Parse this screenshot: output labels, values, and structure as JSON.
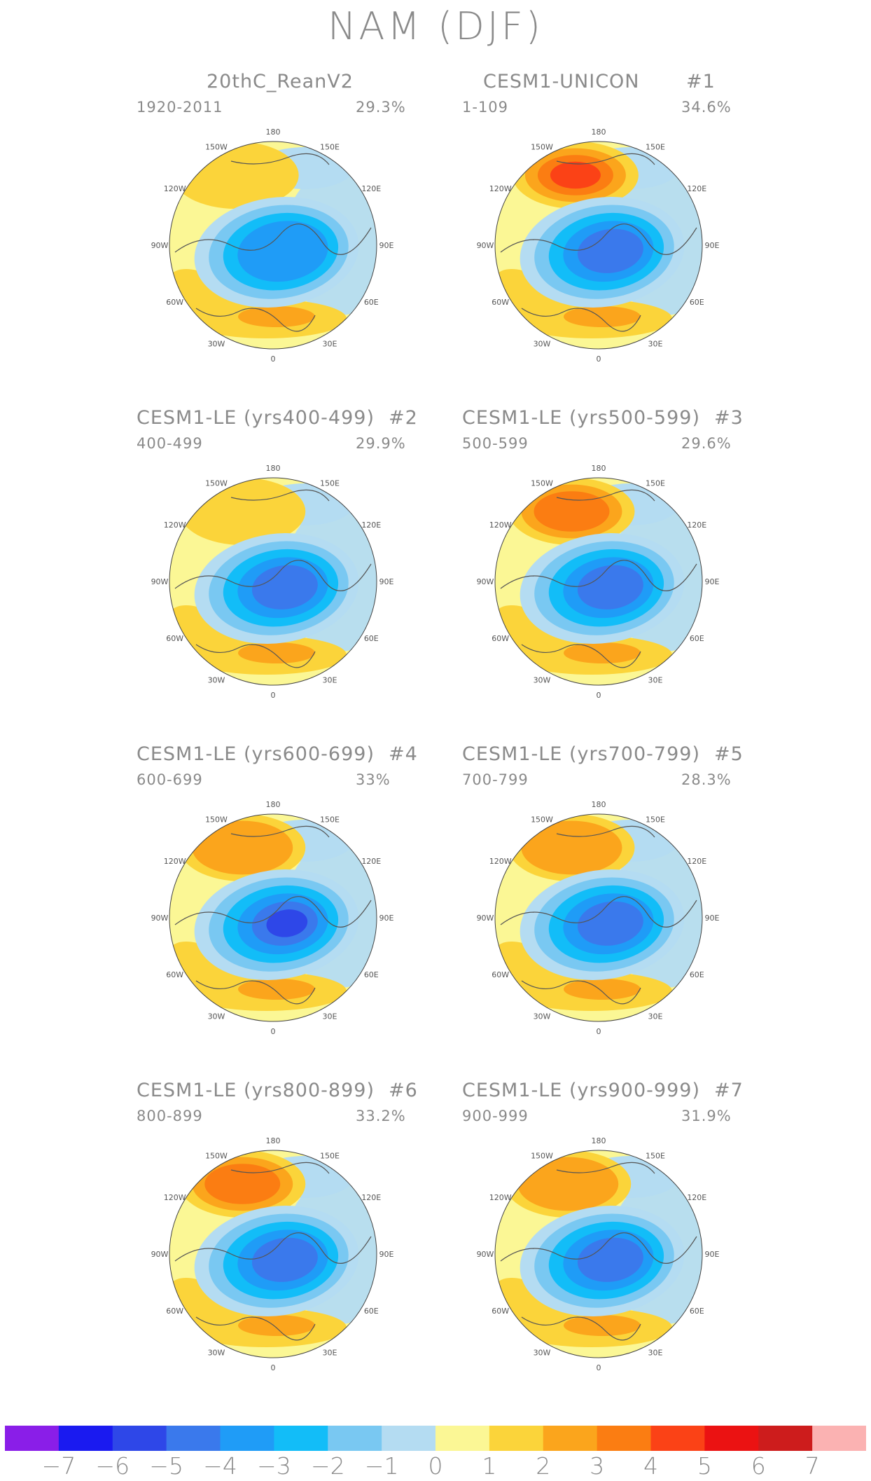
{
  "title": "NAM (DJF)",
  "panels": [
    {
      "title": "20thC_ReanV2",
      "number": "",
      "years": "1920-2011",
      "percent": "29.3%",
      "low_level": -4,
      "high_level": 2,
      "high_lon": -140
    },
    {
      "title": "CESM1-UNICON",
      "number": "#1",
      "years": "1-109",
      "percent": "34.6%",
      "low_level": -5,
      "high_level": 5,
      "high_lon": -160
    },
    {
      "title": "CESM1-LE (yrs400-499)",
      "number": "#2",
      "years": "400-499",
      "percent": "29.9%",
      "low_level": -5,
      "high_level": 2,
      "high_lon": -150
    },
    {
      "title": "CESM1-LE (yrs500-599)",
      "number": "#3",
      "years": "500-599",
      "percent": "29.6%",
      "low_level": -5,
      "high_level": 4,
      "high_lon": -155
    },
    {
      "title": "CESM1-LE (yrs600-699)",
      "number": "#4",
      "years": "600-699",
      "percent": "33%",
      "low_level": -6,
      "high_level": 3,
      "high_lon": -150
    },
    {
      "title": "CESM1-LE (yrs700-799)",
      "number": "#5",
      "years": "700-799",
      "percent": "28.3%",
      "low_level": -5,
      "high_level": 3,
      "high_lon": -155
    },
    {
      "title": "CESM1-LE (yrs800-899)",
      "number": "#6",
      "years": "800-899",
      "percent": "33.2%",
      "low_level": -5,
      "high_level": 4,
      "high_lon": -150
    },
    {
      "title": "CESM1-LE (yrs900-999)",
      "number": "#7",
      "years": "900-999",
      "percent": "31.9%",
      "low_level": -5,
      "high_level": 3,
      "high_lon": -150
    }
  ],
  "lon_labels": [
    "180",
    "150E",
    "120E",
    "90E",
    "60E",
    "30E",
    "0",
    "30W",
    "60W",
    "90W",
    "120W",
    "150W"
  ],
  "colorbar": {
    "colors": [
      "#8a1ee8",
      "#1a1af0",
      "#2e47e8",
      "#3a79ec",
      "#1f9cf7",
      "#12bdf8",
      "#79c8f2",
      "#b4dcf2",
      "#fbf795",
      "#fbd43a",
      "#fba51c",
      "#fb7d12",
      "#fb4216",
      "#eb1212",
      "#cd1c1c",
      "#fbb2b2"
    ],
    "ticks": [
      "−7",
      "−6",
      "−5",
      "−4",
      "−3",
      "−2",
      "−1",
      "0",
      "1",
      "2",
      "3",
      "4",
      "5",
      "6",
      "7"
    ]
  }
}
